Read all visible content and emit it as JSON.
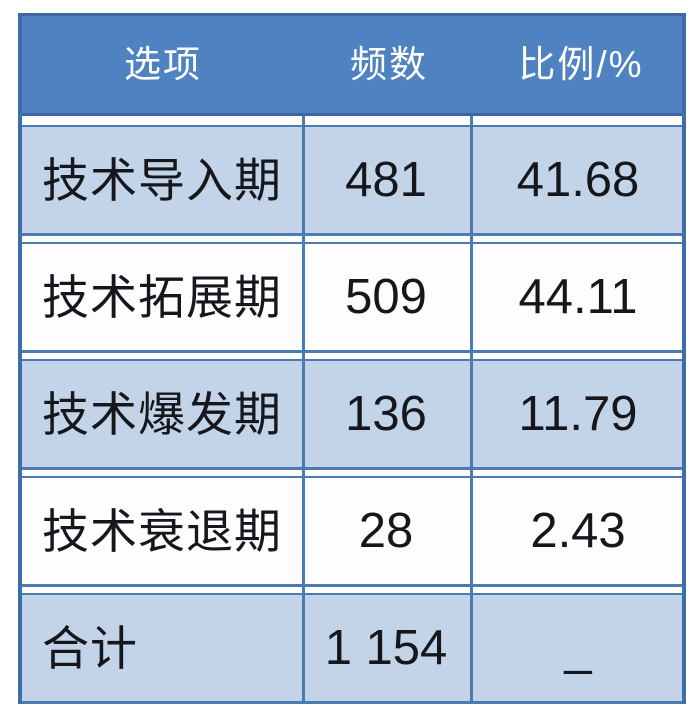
{
  "table": {
    "columns": [
      {
        "label": "选项"
      },
      {
        "label": "频数"
      },
      {
        "label": "比例/%"
      }
    ],
    "rows": [
      {
        "option": "技术导入期",
        "frequency": "481",
        "percent": "41.68"
      },
      {
        "option": "技术拓展期",
        "frequency": "509",
        "percent": "44.11"
      },
      {
        "option": "技术爆发期",
        "frequency": "136",
        "percent": "11.79"
      },
      {
        "option": "技术衰退期",
        "frequency": "28",
        "percent": "2.43"
      },
      {
        "option": "合计",
        "frequency": "1 154",
        "percent": "_"
      }
    ]
  },
  "colors": {
    "page_bg": "#ffffff",
    "header_bg": "#4f82c0",
    "header_border": "#3a689f",
    "header_text": "#ffffff",
    "band_blue": "#c3d4e8",
    "band_white": "#fdfdfe",
    "grid_line": "#4c7bb4",
    "outer_line": "#3e6da9",
    "body_text": "#15171c"
  },
  "chart_data": {
    "type": "table",
    "title": "",
    "columns": [
      "选项",
      "频数",
      "比例/%"
    ],
    "rows": [
      [
        "技术导入期",
        481,
        41.68
      ],
      [
        "技术拓展期",
        509,
        44.11
      ],
      [
        "技术爆发期",
        136,
        11.79
      ],
      [
        "技术衰退期",
        28,
        2.43
      ],
      [
        "合计",
        "1 154",
        "_"
      ]
    ],
    "layout": {
      "header_style": "solid-blue-banner",
      "row_banding": [
        "light-blue",
        "white",
        "light-blue",
        "white",
        "light-blue"
      ],
      "grid": "blue vertical lines, white gaps between row bands",
      "alignment": {
        "option": "left",
        "frequency": "center",
        "percent": "center"
      }
    }
  }
}
